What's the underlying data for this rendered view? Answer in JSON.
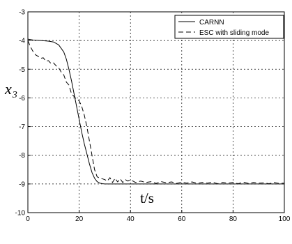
{
  "chart_data": {
    "type": "line",
    "xlabel": "t/s",
    "ylabel": {
      "main": "x",
      "subscript": "3"
    },
    "xlim": [
      0,
      100
    ],
    "ylim": [
      -10,
      -3
    ],
    "xticks": [
      "0",
      "20",
      "40",
      "60",
      "80",
      "100"
    ],
    "yticks": [
      "-3",
      "-4",
      "-5",
      "-6",
      "-7",
      "-8",
      "-9",
      "-10"
    ],
    "grid": true,
    "legend_position": "top-right",
    "series": [
      {
        "name": "CARNN",
        "style": "solid",
        "x": [
          0,
          2,
          5,
          8,
          10,
          12,
          14,
          15,
          16,
          17,
          18,
          19,
          20,
          21,
          22,
          23,
          24,
          25,
          26,
          27,
          28,
          29,
          30,
          32,
          35,
          40,
          50,
          60,
          70,
          80,
          90,
          100
        ],
        "y": [
          -3.95,
          -3.98,
          -4.0,
          -4.02,
          -4.05,
          -4.15,
          -4.4,
          -4.65,
          -5.0,
          -5.4,
          -5.85,
          -6.3,
          -6.75,
          -7.2,
          -7.6,
          -7.95,
          -8.3,
          -8.6,
          -8.8,
          -8.92,
          -8.97,
          -8.99,
          -9.0,
          -9.0,
          -9.0,
          -9.0,
          -9.0,
          -9.0,
          -9.0,
          -9.0,
          -9.0,
          -9.0
        ]
      },
      {
        "name": "ESC with sliding mode",
        "style": "dashed",
        "x": [
          0,
          1,
          2,
          3,
          4,
          5,
          6,
          7,
          8,
          9,
          10,
          11,
          12,
          13,
          14,
          15,
          16,
          17,
          18,
          19,
          20,
          21,
          22,
          23,
          24,
          25,
          26,
          27,
          28,
          29,
          30,
          31,
          32,
          33,
          34,
          35,
          36,
          37,
          38,
          39,
          40,
          42,
          44,
          46,
          48,
          50,
          52,
          54,
          56,
          58,
          60,
          62,
          64,
          66,
          68,
          70,
          72,
          74,
          76,
          78,
          80,
          82,
          84,
          86,
          88,
          90,
          92,
          94,
          96,
          98,
          100
        ],
        "y": [
          -4.0,
          -4.22,
          -4.38,
          -4.5,
          -4.55,
          -4.62,
          -4.6,
          -4.72,
          -4.7,
          -4.8,
          -4.78,
          -4.88,
          -4.95,
          -5.1,
          -5.2,
          -5.45,
          -5.55,
          -5.85,
          -5.95,
          -6.05,
          -6.1,
          -6.3,
          -6.6,
          -7.0,
          -7.5,
          -8.0,
          -8.5,
          -8.75,
          -8.8,
          -8.82,
          -8.85,
          -8.9,
          -8.78,
          -8.95,
          -8.8,
          -8.93,
          -8.82,
          -8.95,
          -8.85,
          -8.9,
          -8.85,
          -8.95,
          -8.9,
          -8.95,
          -8.92,
          -8.98,
          -8.92,
          -8.96,
          -8.93,
          -8.98,
          -8.94,
          -8.97,
          -8.93,
          -8.98,
          -8.95,
          -8.97,
          -8.94,
          -8.99,
          -8.95,
          -8.97,
          -8.95,
          -8.99,
          -8.94,
          -8.98,
          -8.95,
          -8.97,
          -8.96,
          -8.99,
          -8.95,
          -8.98,
          -8.97
        ]
      }
    ]
  }
}
